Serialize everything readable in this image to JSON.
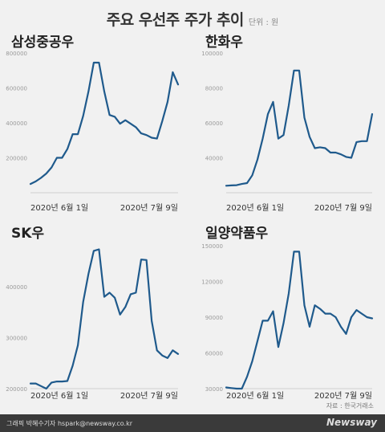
{
  "header": {
    "title": "주요 우선주 주가 추이",
    "unit": "단위 : 원"
  },
  "footer": {
    "source": "자료 : 한국거래소",
    "credit": "그래픽 박혜수기자 hspark@newsway.co.kr",
    "brand": "Newsway"
  },
  "colors": {
    "line": "#1f5a8c",
    "background": "#f1f1f1",
    "gridline": "#d0d0d0"
  },
  "chart_data": [
    {
      "type": "line",
      "title": "삼성중공우",
      "x_labels": [
        "2020년 6월 1일",
        "2020년 7월 9일"
      ],
      "y_ticks": [
        "800000",
        "600000",
        "400000",
        "200000"
      ],
      "ylim": [
        0,
        800000
      ],
      "values": [
        50000,
        65000,
        85000,
        110000,
        145000,
        200000,
        200000,
        250000,
        335000,
        335000,
        440000,
        580000,
        745000,
        745000,
        580000,
        445000,
        435000,
        395000,
        415000,
        395000,
        375000,
        340000,
        330000,
        315000,
        310000,
        410000,
        520000,
        690000,
        620000
      ]
    },
    {
      "type": "line",
      "title": "한화우",
      "x_labels": [
        "2020년 6월 1일",
        "2020년 7월 9일"
      ],
      "y_ticks": [
        "100000",
        "80000",
        "60000",
        "40000"
      ],
      "ylim": [
        20000,
        100000
      ],
      "values": [
        24000,
        24200,
        24300,
        25000,
        25500,
        30000,
        39000,
        51000,
        65000,
        72000,
        51000,
        53000,
        70000,
        90000,
        90000,
        63000,
        52000,
        45500,
        46000,
        45500,
        43000,
        43000,
        42000,
        40500,
        40000,
        49000,
        49500,
        49500,
        65000
      ]
    },
    {
      "type": "line",
      "title": "SK우",
      "x_labels": [
        "2020년 6월 1일",
        "2020년 7월 9일"
      ],
      "y_ticks": [
        "400000",
        "300000",
        "200000"
      ],
      "ylim": [
        200000,
        480000
      ],
      "values": [
        210000,
        210000,
        205000,
        200000,
        212000,
        214000,
        214000,
        215000,
        245000,
        285000,
        370000,
        425000,
        470000,
        473000,
        380000,
        388000,
        378000,
        345000,
        360000,
        385000,
        388000,
        453000,
        452000,
        333000,
        275000,
        265000,
        260000,
        275000,
        268000
      ]
    },
    {
      "type": "line",
      "title": "일양약품우",
      "x_labels": [
        "2020년 6월 1일",
        "2020년 7월 9일"
      ],
      "y_ticks": [
        "150000",
        "120000",
        "90000",
        "60000",
        "30000"
      ],
      "ylim": [
        30000,
        150000
      ],
      "values": [
        31000,
        30500,
        30000,
        30000,
        40000,
        53000,
        70000,
        87000,
        87000,
        95000,
        65000,
        85000,
        110000,
        145000,
        145000,
        100000,
        82000,
        100000,
        97000,
        93000,
        93000,
        90000,
        82000,
        76000,
        90000,
        96000,
        93000,
        90000,
        89000
      ]
    }
  ]
}
